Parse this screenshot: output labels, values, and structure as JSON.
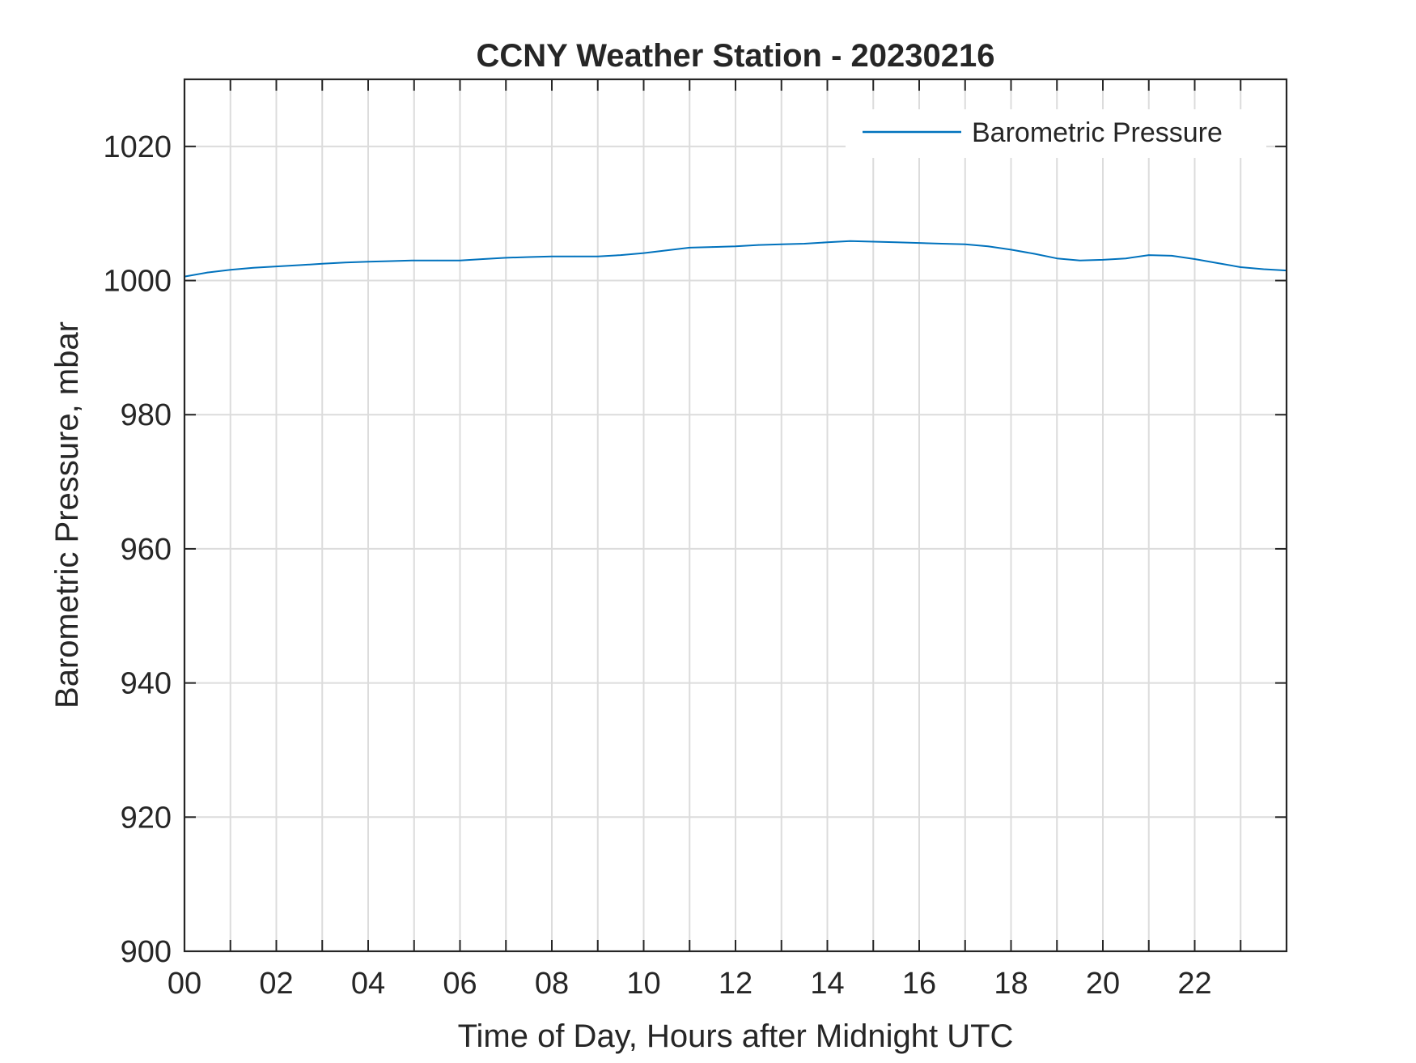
{
  "chart_data": {
    "type": "line",
    "title": "CCNY Weather Station - 20230216",
    "xlabel": "Time of Day, Hours after Midnight UTC",
    "ylabel": "Barometric Pressure, mbar",
    "xlim": [
      0,
      24
    ],
    "ylim": [
      900,
      1030
    ],
    "x_ticks": [
      0,
      2,
      4,
      6,
      8,
      10,
      12,
      14,
      16,
      18,
      20,
      22
    ],
    "x_tick_labels": [
      "00",
      "02",
      "04",
      "06",
      "08",
      "10",
      "12",
      "14",
      "16",
      "18",
      "20",
      "22"
    ],
    "x_minor_grid_hours": [
      1,
      3,
      5,
      7,
      9,
      11,
      13,
      15,
      17,
      19,
      21,
      23
    ],
    "y_ticks": [
      900,
      920,
      940,
      960,
      980,
      1000,
      1020
    ],
    "y_tick_labels": [
      "900",
      "920",
      "940",
      "960",
      "980",
      "1000",
      "1020"
    ],
    "grid": true,
    "legend_position": "top-right",
    "series": [
      {
        "name": "Barometric Pressure",
        "color": "#0072BD",
        "x": [
          0,
          0.5,
          1,
          1.5,
          2,
          2.5,
          3,
          3.5,
          4,
          4.5,
          5,
          5.5,
          6,
          6.5,
          7,
          7.5,
          8,
          8.5,
          9,
          9.5,
          10,
          10.5,
          11,
          11.5,
          12,
          12.5,
          13,
          13.5,
          14,
          14.5,
          15,
          15.5,
          16,
          16.5,
          17,
          17.5,
          18,
          18.5,
          19,
          19.5,
          20,
          20.5,
          21,
          21.5,
          22,
          22.5,
          23,
          23.5,
          24
        ],
        "y": [
          1000.6,
          1001.2,
          1001.6,
          1001.9,
          1002.1,
          1002.3,
          1002.5,
          1002.7,
          1002.8,
          1002.9,
          1003.0,
          1003.0,
          1003.0,
          1003.2,
          1003.4,
          1003.5,
          1003.6,
          1003.6,
          1003.6,
          1003.8,
          1004.1,
          1004.5,
          1004.9,
          1005.0,
          1005.1,
          1005.3,
          1005.4,
          1005.5,
          1005.7,
          1005.9,
          1005.8,
          1005.7,
          1005.6,
          1005.5,
          1005.4,
          1005.1,
          1004.6,
          1004.0,
          1003.3,
          1003.0,
          1003.1,
          1003.3,
          1003.8,
          1003.7,
          1003.2,
          1002.6,
          1002.0,
          1001.7,
          1001.5
        ]
      }
    ]
  }
}
